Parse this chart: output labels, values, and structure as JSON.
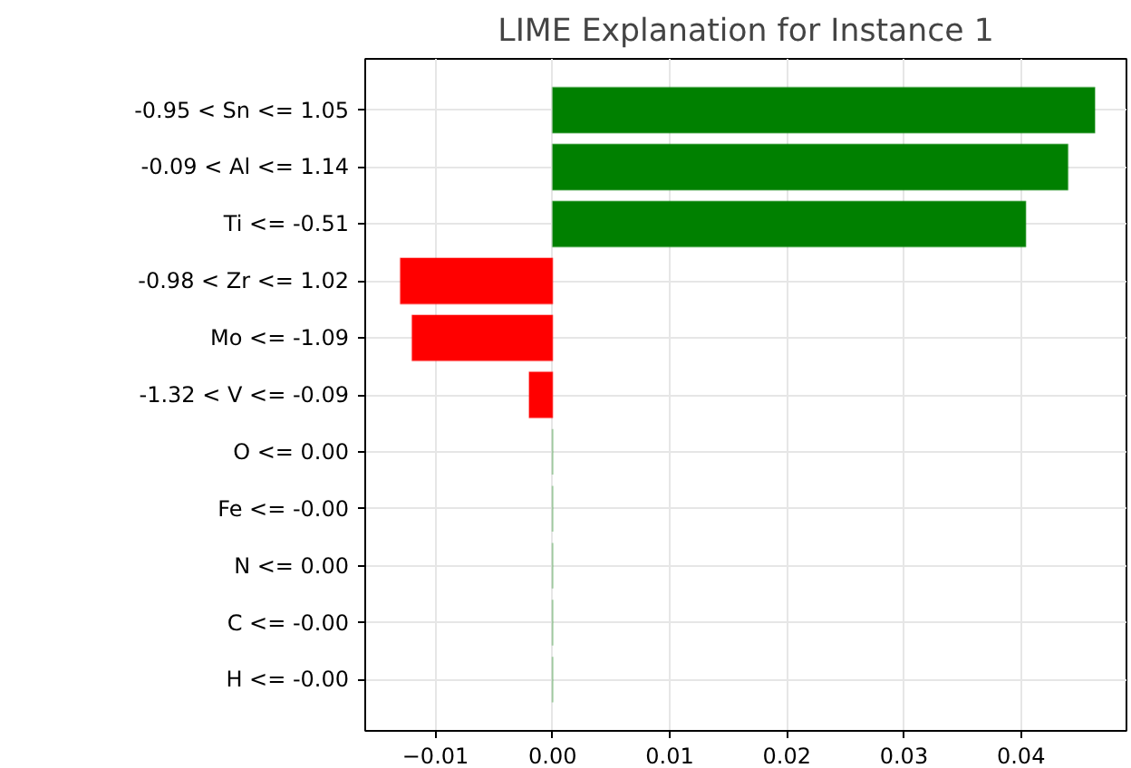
{
  "chart_data": {
    "type": "bar",
    "orientation": "horizontal",
    "title": "LIME Explanation for Instance 1",
    "categories": [
      "-0.95 < Sn <= 1.05",
      "-0.09 < Al <= 1.14",
      "Ti <= -0.51",
      "-0.98 < Zr <= 1.02",
      "Mo <= -1.09",
      "-1.32 < V <= -0.09",
      "O <= 0.00",
      "Fe <= -0.00",
      "N <= 0.00",
      "C <= -0.00",
      "H <= -0.00"
    ],
    "values": [
      0.0463,
      0.044,
      0.0404,
      -0.013,
      -0.012,
      -0.002,
      0,
      0,
      0,
      0,
      0
    ],
    "colors": [
      "#008000",
      "#008000",
      "#008000",
      "#ff0000",
      "#ff0000",
      "#ff0000",
      "#008000",
      "#008000",
      "#008000",
      "#008000",
      "#008000"
    ],
    "xlim": [
      -0.016,
      0.049
    ],
    "xticks": [
      {
        "value": -0.01,
        "label": "−0.01"
      },
      {
        "value": 0.0,
        "label": "0.00"
      },
      {
        "value": 0.01,
        "label": "0.01"
      },
      {
        "value": 0.02,
        "label": "0.02"
      },
      {
        "value": 0.03,
        "label": "0.03"
      },
      {
        "value": 0.04,
        "label": "0.04"
      }
    ],
    "grid": true
  }
}
